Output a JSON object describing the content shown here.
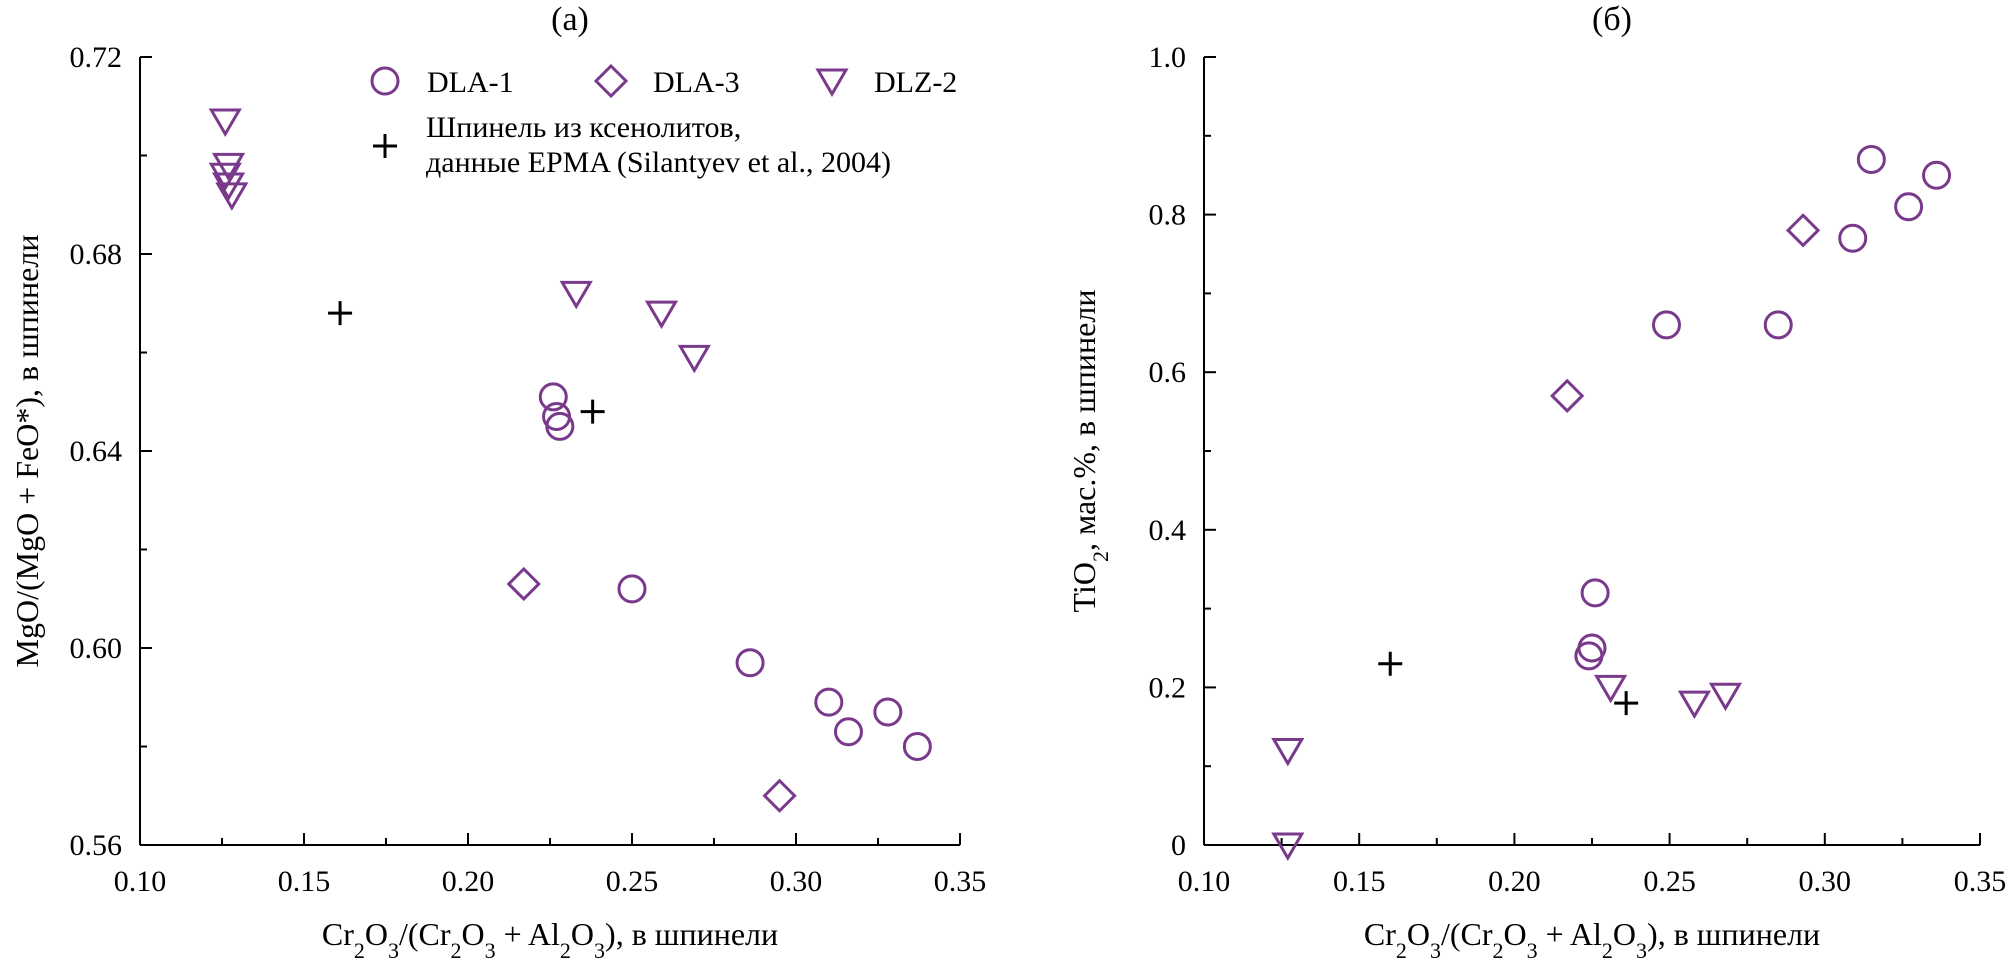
{
  "chart_data": [
    {
      "type": "scatter",
      "title": "(а)",
      "xlabel": "Cr2O3/(Cr2O3 + Al2O3), в шпинели",
      "ylabel": "MgO/(MgO + FeO*), в шпинели",
      "xlim": [
        0.1,
        0.35
      ],
      "ylim": [
        0.56,
        0.72
      ],
      "x_ticks": [
        0.1,
        0.15,
        0.2,
        0.25,
        0.3,
        0.35
      ],
      "y_ticks": [
        0.56,
        0.6,
        0.64,
        0.68,
        0.72
      ],
      "x_tick_labels": [
        "0.10",
        "0.15",
        "0.20",
        "0.25",
        "0.30",
        "0.35"
      ],
      "y_tick_labels": [
        "0.56",
        "0.60",
        "0.64",
        "0.68",
        "0.72"
      ],
      "legend_position": "top",
      "series": [
        {
          "name": "DLA-1",
          "marker": "circle",
          "color": "#7a3a8c",
          "points": [
            {
              "x": 0.226,
              "y": 0.651
            },
            {
              "x": 0.227,
              "y": 0.647
            },
            {
              "x": 0.228,
              "y": 0.645
            },
            {
              "x": 0.25,
              "y": 0.612
            },
            {
              "x": 0.286,
              "y": 0.597
            },
            {
              "x": 0.31,
              "y": 0.589
            },
            {
              "x": 0.316,
              "y": 0.583
            },
            {
              "x": 0.328,
              "y": 0.587
            },
            {
              "x": 0.337,
              "y": 0.58
            }
          ]
        },
        {
          "name": "DLA-3",
          "marker": "diamond",
          "color": "#7a3a8c",
          "points": [
            {
              "x": 0.217,
              "y": 0.613
            },
            {
              "x": 0.295,
              "y": 0.57
            }
          ]
        },
        {
          "name": "DLZ-2",
          "marker": "triangle-down",
          "color": "#7a3a8c",
          "points": [
            {
              "x": 0.126,
              "y": 0.707
            },
            {
              "x": 0.127,
              "y": 0.698
            },
            {
              "x": 0.126,
              "y": 0.696
            },
            {
              "x": 0.127,
              "y": 0.694
            },
            {
              "x": 0.128,
              "y": 0.692
            },
            {
              "x": 0.233,
              "y": 0.672
            },
            {
              "x": 0.259,
              "y": 0.668
            },
            {
              "x": 0.269,
              "y": 0.659
            }
          ]
        },
        {
          "name": "Шпинель из ксенолитов, данные EPMA (Silantyev et al., 2004)",
          "marker": "cross",
          "color": "#000000",
          "points": [
            {
              "x": 0.161,
              "y": 0.668
            },
            {
              "x": 0.238,
              "y": 0.648
            }
          ]
        }
      ]
    },
    {
      "type": "scatter",
      "title": "(б)",
      "xlabel": "Cr2O3/(Cr2O3 + Al2O3), в шпинели",
      "ylabel": "TiO2, мас.%, в шпинели",
      "xlim": [
        0.1,
        0.35
      ],
      "ylim": [
        0,
        1.0
      ],
      "x_ticks": [
        0.1,
        0.15,
        0.2,
        0.25,
        0.3,
        0.35
      ],
      "y_ticks": [
        0,
        0.2,
        0.4,
        0.6,
        0.8,
        1.0
      ],
      "x_tick_labels": [
        "0.10",
        "0.15",
        "0.20",
        "0.25",
        "0.30",
        "0.35"
      ],
      "y_tick_labels": [
        "0",
        "0.2",
        "0.4",
        "0.6",
        "0.8",
        "1.0"
      ],
      "series": [
        {
          "name": "DLA-1",
          "marker": "circle",
          "color": "#7a3a8c",
          "points": [
            {
              "x": 0.226,
              "y": 0.32
            },
            {
              "x": 0.225,
              "y": 0.25
            },
            {
              "x": 0.224,
              "y": 0.24
            },
            {
              "x": 0.249,
              "y": 0.66
            },
            {
              "x": 0.285,
              "y": 0.66
            },
            {
              "x": 0.309,
              "y": 0.77
            },
            {
              "x": 0.315,
              "y": 0.87
            },
            {
              "x": 0.327,
              "y": 0.81
            },
            {
              "x": 0.336,
              "y": 0.85
            }
          ]
        },
        {
          "name": "DLA-3",
          "marker": "diamond",
          "color": "#7a3a8c",
          "points": [
            {
              "x": 0.217,
              "y": 0.57
            },
            {
              "x": 0.293,
              "y": 0.78
            }
          ]
        },
        {
          "name": "DLZ-2",
          "marker": "triangle-down",
          "color": "#7a3a8c",
          "points": [
            {
              "x": 0.127,
              "y": 0.12
            },
            {
              "x": 0.127,
              "y": 0.0
            },
            {
              "x": 0.231,
              "y": 0.2
            },
            {
              "x": 0.258,
              "y": 0.18
            },
            {
              "x": 0.268,
              "y": 0.19
            }
          ]
        },
        {
          "name": "Шпинель из ксенолитов, данные EPMA (Silantyev et al., 2004)",
          "marker": "cross",
          "color": "#000000",
          "points": [
            {
              "x": 0.16,
              "y": 0.23
            },
            {
              "x": 0.236,
              "y": 0.18
            }
          ]
        }
      ]
    }
  ],
  "legend": {
    "items": [
      {
        "label": "DLA-1",
        "marker": "circle"
      },
      {
        "label": "DLA-3",
        "marker": "diamond"
      },
      {
        "label": "DLZ-2",
        "marker": "triangle-down"
      }
    ],
    "cross_label_line1": "Шпинель из ксенолитов,",
    "cross_label_line2": "данные EPMA (Silantyev et al., 2004)"
  },
  "colors": {
    "sample_marker": "#7a3a8c",
    "literature_marker": "#000000",
    "axis": "#000000"
  }
}
